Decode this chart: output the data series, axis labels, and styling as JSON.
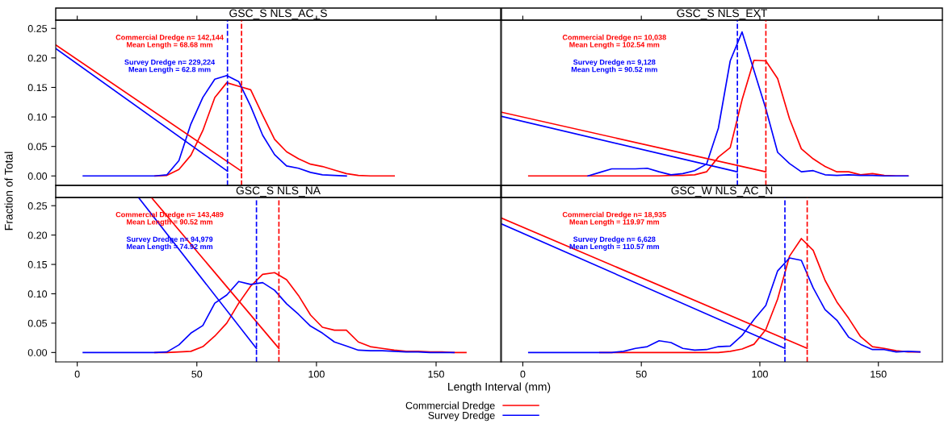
{
  "chart_data": [
    {
      "type": "line",
      "title": "GSC_S NLS_AC_S",
      "ylabel": "Fraction of Total",
      "xlim": [
        -9,
        177
      ],
      "ylim": [
        -0.016,
        0.264
      ],
      "xticks": [
        0,
        50,
        100,
        150
      ],
      "yticks": [
        {
          "value": 0,
          "label": "0.00"
        },
        {
          "value": 0.05,
          "label": "0.05"
        },
        {
          "value": 0.1,
          "label": "0.10"
        },
        {
          "value": 0.15,
          "label": "0.15"
        },
        {
          "value": 0.2,
          "label": "0.20"
        },
        {
          "value": 0.25,
          "label": "0.25"
        }
      ],
      "tick_labels": "y",
      "legend": "bottom",
      "annotations": [
        "Commercial Dredge n= 142,144\nMean Length = 68.68 mm",
        "Survey Dredge n= 229,224\nMean Length = 62.8 mm"
      ],
      "ref_lines": [
        {
          "axis": "x",
          "value": 68.68,
          "color": "#ff0000",
          "line_style": "dashed"
        },
        {
          "axis": "x",
          "value": 62.8,
          "color": "#0000ff",
          "line_style": "dashed"
        }
      ],
      "series": [
        {
          "name": "Commercial Dredge",
          "color": "#ff0000",
          "x": [
            32.5,
            37.5,
            42.5,
            47.5,
            52.5,
            57.5,
            62.5,
            67.5,
            72.5,
            77.5,
            82.5,
            87.5,
            92.5,
            97.5,
            102.5,
            107.5,
            112.5,
            117.5,
            122.5,
            127.5,
            132.5
          ],
          "values": [
            0,
            0.001,
            0.011,
            0.035,
            0.077,
            0.133,
            0.158,
            0.152,
            0.146,
            0.103,
            0.062,
            0.041,
            0.029,
            0.02,
            0.016,
            0.01,
            0.004,
            0.001,
            0,
            0,
            0
          ]
        },
        {
          "name": "Survey Dredge",
          "color": "#0000ff",
          "x": [
            2.5,
            7.5,
            12.5,
            17.5,
            22.5,
            27.5,
            32.5,
            37.5,
            42.5,
            47.5,
            52.5,
            57.5,
            62.5,
            67.5,
            72.5,
            77.5,
            82.5,
            87.5,
            92.5,
            97.5,
            102.5,
            107.5,
            112.5
          ],
          "values": [
            0,
            0,
            0,
            0,
            0,
            0,
            0,
            0.002,
            0.026,
            0.088,
            0.133,
            0.164,
            0.17,
            0.16,
            0.118,
            0.069,
            0.036,
            0.017,
            0.013,
            0.006,
            0.002,
            0.001,
            0
          ]
        },
        {
          "color": "#ff0000",
          "x": [
            -9,
            68.68
          ],
          "values": [
            0.222,
            0.008
          ]
        },
        {
          "color": "#0000ff",
          "x": [
            -9,
            62.8
          ],
          "values": [
            0.216,
            0.008
          ]
        }
      ]
    },
    {
      "type": "line",
      "title": "GSC_S NLS_EXT",
      "xlim": [
        -9,
        177
      ],
      "ylim": [
        -0.016,
        0.264
      ],
      "xticks": [
        0,
        50,
        100,
        150
      ],
      "yticks": [
        {
          "value": 0,
          "label": "0.00"
        },
        {
          "value": 0.05,
          "label": "0.05"
        },
        {
          "value": 0.1,
          "label": "0.10"
        },
        {
          "value": 0.15,
          "label": "0.15"
        },
        {
          "value": 0.2,
          "label": "0.20"
        },
        {
          "value": 0.25,
          "label": "0.25"
        }
      ],
      "tick_labels": false,
      "legend": "bottom",
      "annotations": [
        "Commercial Dredge n= 10,038\nMean Length = 102.54 mm",
        "Survey Dredge n= 9,128\nMean Length = 90.52 mm"
      ],
      "ref_lines": [
        {
          "axis": "x",
          "value": 102.54,
          "color": "#ff0000",
          "line_style": "dashed"
        },
        {
          "axis": "x",
          "value": 90.52,
          "color": "#0000ff",
          "line_style": "dashed"
        }
      ],
      "series": [
        {
          "name": "Commercial Dredge",
          "color": "#ff0000",
          "x": [
            2.5,
            7.5,
            12.5,
            17.5,
            22.5,
            27.5,
            32.5,
            37.5,
            42.5,
            47.5,
            52.5,
            57.5,
            62.5,
            67.5,
            72.5,
            77.5,
            82.5,
            87.5,
            92.5,
            97.5,
            102.5,
            107.5,
            112.5,
            117.5,
            122.5,
            127.5,
            132.5,
            137.5,
            142.5,
            147.5,
            152.5,
            157.5,
            162.5
          ],
          "values": [
            0,
            0,
            0,
            0,
            0,
            0,
            0,
            0,
            0,
            0,
            0,
            0,
            0.001,
            0.001,
            0.002,
            0.007,
            0.032,
            0.048,
            0.129,
            0.196,
            0.195,
            0.165,
            0.097,
            0.046,
            0.029,
            0.016,
            0.007,
            0.007,
            0.002,
            0.004,
            0.001,
            0,
            0
          ]
        },
        {
          "name": "Survey Dredge",
          "color": "#0000ff",
          "x": [
            27.5,
            32.5,
            37.5,
            42.5,
            47.5,
            52.5,
            57.5,
            62.5,
            67.5,
            72.5,
            77.5,
            82.5,
            87.5,
            92.5,
            97.5,
            102.5,
            107.5,
            112.5,
            117.5,
            122.5,
            127.5,
            132.5,
            137.5,
            142.5,
            147.5,
            152.5,
            157.5,
            162.5
          ],
          "values": [
            0,
            0.006,
            0.012,
            0.012,
            0.012,
            0.013,
            0.007,
            0.002,
            0.004,
            0.009,
            0.02,
            0.081,
            0.195,
            0.244,
            0.179,
            0.114,
            0.04,
            0.021,
            0.007,
            0.009,
            0.002,
            0.001,
            0.002,
            0.001,
            0.001,
            0,
            0,
            0
          ]
        },
        {
          "color": "#ff0000",
          "x": [
            -9,
            102.54
          ],
          "values": [
            0.108,
            0.007
          ]
        },
        {
          "color": "#0000ff",
          "x": [
            -9,
            90.52
          ],
          "values": [
            0.101,
            0.007
          ]
        }
      ]
    },
    {
      "type": "line",
      "title": "GSC_S NLS_NA",
      "xlabel": "Length Interval (mm)",
      "xlim": [
        -9,
        177
      ],
      "ylim": [
        -0.016,
        0.264
      ],
      "xticks": [
        0,
        50,
        100,
        150
      ],
      "yticks": [
        {
          "value": 0,
          "label": "0.00"
        },
        {
          "value": 0.05,
          "label": "0.05"
        },
        {
          "value": 0.1,
          "label": "0.10"
        },
        {
          "value": 0.15,
          "label": "0.15"
        },
        {
          "value": 0.2,
          "label": "0.20"
        },
        {
          "value": 0.25,
          "label": "0.25"
        }
      ],
      "legend": "bottom",
      "annotations": [
        "Commercial Dredge n= 143,489\nMean Length = 90.52 mm",
        "Survey Dredge n= 94,979\nMean Length = 74.92 mm"
      ],
      "ref_lines": [
        {
          "axis": "x",
          "value": 84.3,
          "color": "#ff0000",
          "line_style": "dashed"
        },
        {
          "axis": "x",
          "value": 74.92,
          "color": "#0000ff",
          "line_style": "dashed"
        }
      ],
      "series": [
        {
          "name": "Commercial Dredge",
          "color": "#ff0000",
          "x": [
            32.5,
            37.5,
            42.5,
            47.5,
            52.5,
            57.5,
            62.5,
            67.5,
            72.5,
            77.5,
            82.5,
            87.5,
            92.5,
            97.5,
            102.5,
            107.5,
            112.5,
            117.5,
            122.5,
            127.5,
            132.5,
            137.5,
            142.5,
            147.5,
            152.5,
            157.5,
            162.5
          ],
          "values": [
            0,
            0,
            0.001,
            0.002,
            0.01,
            0.028,
            0.05,
            0.084,
            0.113,
            0.133,
            0.136,
            0.124,
            0.097,
            0.064,
            0.043,
            0.038,
            0.038,
            0.018,
            0.01,
            0.007,
            0.004,
            0.002,
            0.002,
            0.001,
            0.001,
            0,
            0
          ]
        },
        {
          "name": "Survey Dredge",
          "color": "#0000ff",
          "x": [
            2.5,
            7.5,
            12.5,
            17.5,
            22.5,
            27.5,
            32.5,
            37.5,
            42.5,
            47.5,
            52.5,
            57.5,
            62.5,
            67.5,
            72.5,
            77.5,
            82.5,
            87.5,
            92.5,
            97.5,
            102.5,
            107.5,
            112.5,
            117.5,
            122.5,
            127.5,
            132.5,
            137.5,
            142.5,
            147.5,
            152.5,
            157.5
          ],
          "values": [
            0,
            0,
            0,
            0,
            0,
            0,
            0,
            0.001,
            0.013,
            0.033,
            0.046,
            0.084,
            0.098,
            0.121,
            0.116,
            0.119,
            0.106,
            0.083,
            0.065,
            0.045,
            0.033,
            0.018,
            0.011,
            0.004,
            0.003,
            0.003,
            0.002,
            0.001,
            0.001,
            0,
            0,
            0
          ]
        },
        {
          "color": "#ff0000",
          "x": [
            31.0,
            84.3
          ],
          "values": [
            0.264,
            0.007
          ]
        },
        {
          "color": "#0000ff",
          "x": [
            25.6,
            74.92
          ],
          "values": [
            0.264,
            0.007
          ]
        }
      ]
    },
    {
      "type": "line",
      "title": "GSC_W NLS_AC_N",
      "xlim": [
        -9,
        177
      ],
      "ylim": [
        -0.016,
        0.264
      ],
      "xticks": [
        0,
        50,
        100,
        150
      ],
      "yticks": [
        {
          "value": 0,
          "label": "0.00"
        },
        {
          "value": 0.05,
          "label": "0.05"
        },
        {
          "value": 0.1,
          "label": "0.10"
        },
        {
          "value": 0.15,
          "label": "0.15"
        },
        {
          "value": 0.2,
          "label": "0.20"
        },
        {
          "value": 0.25,
          "label": "0.25"
        }
      ],
      "tick_labels": "x",
      "legend": "bottom",
      "annotations": [
        "Commercial Dredge n= 18,935\nMean Length = 119.97 mm",
        "Survey Dredge n= 6,628\nMean Length = 110.57 mm"
      ],
      "ref_lines": [
        {
          "axis": "x",
          "value": 119.97,
          "color": "#ff0000",
          "line_style": "dashed"
        },
        {
          "axis": "x",
          "value": 110.57,
          "color": "#0000ff",
          "line_style": "dashed"
        }
      ],
      "series": [
        {
          "name": "Commercial Dredge",
          "color": "#ff0000",
          "x": [
            32.5,
            37.5,
            42.5,
            47.5,
            52.5,
            57.5,
            62.5,
            67.5,
            72.5,
            77.5,
            82.5,
            87.5,
            92.5,
            97.5,
            102.5,
            107.5,
            112.5,
            117.5,
            122.5,
            127.5,
            132.5,
            137.5,
            142.5,
            147.5,
            152.5,
            157.5,
            162.5,
            167.5
          ],
          "values": [
            0,
            0,
            0,
            0,
            0,
            0,
            0,
            0,
            0,
            0,
            0,
            0.002,
            0.006,
            0.014,
            0.039,
            0.091,
            0.164,
            0.194,
            0.174,
            0.123,
            0.086,
            0.058,
            0.027,
            0.01,
            0.007,
            0.003,
            0.001,
            0.001
          ]
        },
        {
          "name": "Survey Dredge",
          "color": "#0000ff",
          "x": [
            2.5,
            7.5,
            12.5,
            17.5,
            22.5,
            27.5,
            32.5,
            37.5,
            42.5,
            47.5,
            52.5,
            57.5,
            62.5,
            67.5,
            72.5,
            77.5,
            82.5,
            87.5,
            92.5,
            97.5,
            102.5,
            107.5,
            112.5,
            117.5,
            122.5,
            127.5,
            132.5,
            137.5,
            142.5,
            147.5,
            152.5,
            157.5,
            162.5,
            167.5
          ],
          "values": [
            0,
            0,
            0,
            0,
            0,
            0,
            0,
            0,
            0.002,
            0.007,
            0.01,
            0.02,
            0.017,
            0.007,
            0.004,
            0.005,
            0.01,
            0.011,
            0.029,
            0.056,
            0.08,
            0.139,
            0.161,
            0.157,
            0.11,
            0.073,
            0.055,
            0.026,
            0.014,
            0.005,
            0.005,
            0.001,
            0.002,
            0.001
          ]
        },
        {
          "color": "#ff0000",
          "x": [
            -9,
            119.97
          ],
          "values": [
            0.229,
            0.007
          ]
        },
        {
          "color": "#0000ff",
          "x": [
            -9,
            110.57
          ],
          "values": [
            0.219,
            0.007
          ]
        }
      ]
    }
  ]
}
